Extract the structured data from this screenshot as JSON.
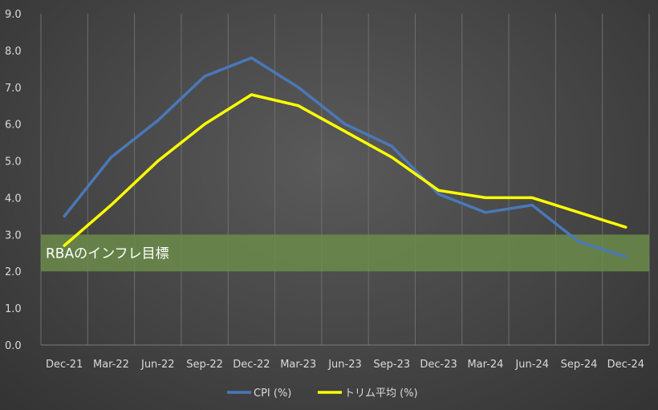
{
  "chart_data": {
    "type": "line",
    "title": "",
    "xlabel": "",
    "ylabel": "",
    "categories": [
      "Dec-21",
      "Mar-22",
      "Jun-22",
      "Sep-22",
      "Dec-22",
      "Mar-23",
      "Jun-23",
      "Sep-23",
      "Dec-23",
      "Mar-24",
      "Jun-24",
      "Sep-24",
      "Dec-24"
    ],
    "y_ticks": [
      "0.0",
      "1.0",
      "2.0",
      "3.0",
      "4.0",
      "5.0",
      "6.0",
      "7.0",
      "8.0",
      "9.0"
    ],
    "ylim": [
      0,
      9
    ],
    "grid": "vertical",
    "legend_position": "bottom",
    "band": {
      "label": "RBAのインフレ目標",
      "from": 2.0,
      "to": 3.0,
      "color": "#6b8c4a"
    },
    "series": [
      {
        "name": "CPI (%)",
        "color": "#4a78b8",
        "values": [
          3.5,
          5.1,
          6.1,
          7.3,
          7.8,
          7.0,
          6.0,
          5.4,
          4.1,
          3.6,
          3.8,
          2.8,
          2.4
        ]
      },
      {
        "name": "トリム平均 (%)",
        "color": "#ffff00",
        "values": [
          2.7,
          3.8,
          5.0,
          6.0,
          6.8,
          6.5,
          5.8,
          5.1,
          4.2,
          4.0,
          4.0,
          3.6,
          3.2
        ]
      }
    ]
  }
}
